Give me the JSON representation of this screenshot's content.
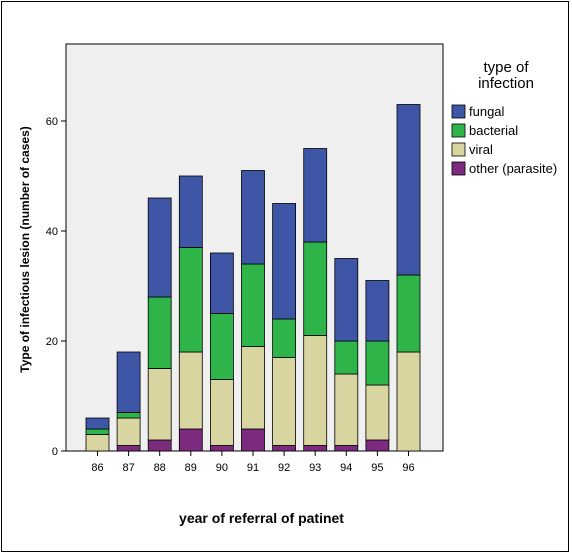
{
  "chart_data": {
    "type": "bar",
    "stacked": true,
    "xlabel": "year of referral of patinet",
    "ylabel": "Type of infectious lesion (number of cases)",
    "ylim": [
      0,
      74
    ],
    "yticks": [
      0,
      20,
      40,
      60
    ],
    "grid": false,
    "legend_placement": "right",
    "legend_title": [
      "type of",
      "infection"
    ],
    "categories": [
      "86",
      "87",
      "88",
      "89",
      "90",
      "91",
      "92",
      "93",
      "94",
      "95",
      "96"
    ],
    "series": [
      {
        "name": "other (parasite)",
        "color": "#7b2a7e",
        "values": [
          0,
          1,
          2,
          4,
          1,
          4,
          1,
          1,
          1,
          2,
          0
        ]
      },
      {
        "name": "viral",
        "color": "#d9d5a0",
        "values": [
          3,
          5,
          13,
          14,
          12,
          15,
          16,
          20,
          13,
          10,
          18
        ]
      },
      {
        "name": "bacterial",
        "color": "#2fb44a",
        "values": [
          1,
          1,
          13,
          19,
          12,
          15,
          7,
          17,
          6,
          8,
          14
        ]
      },
      {
        "name": "fungal",
        "color": "#3f55a6",
        "values": [
          2,
          11,
          18,
          13,
          11,
          17,
          21,
          17,
          15,
          11,
          31
        ]
      }
    ],
    "legend_order": [
      "fungal",
      "bacterial",
      "viral",
      "other (parasite)"
    ]
  }
}
